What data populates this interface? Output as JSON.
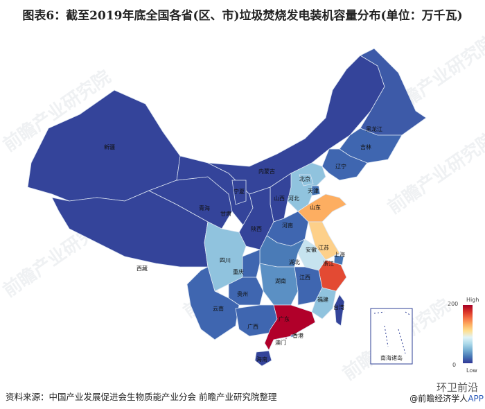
{
  "title": "图表6：截至2019年底全国各省(区、市)垃圾焚烧发电装机容量分布(单位：万千瓦)",
  "source": "资料来源：中国产业发展促进会生物质能产业分会 前瞻产业研究院整理",
  "brand": {
    "wechat": "环卫前沿",
    "app_prefix": "@前瞻经济学人",
    "app_suffix": "APP"
  },
  "watermark": "前瞻产业研究院",
  "legend": {
    "max": "200",
    "min": "0",
    "high_label": "High",
    "low_label": "Low",
    "colors": [
      "#a50026",
      "#d73027",
      "#f46d43",
      "#fdae61",
      "#fee090",
      "#e0f3f8",
      "#abd9e9",
      "#74add1",
      "#4575b4",
      "#313695"
    ]
  },
  "inset_label": "南海诸岛",
  "provinces": [
    {
      "name": "新疆",
      "color": "#34449a"
    },
    {
      "name": "西藏",
      "color": "#34449a"
    },
    {
      "name": "青海",
      "color": "#34449a"
    },
    {
      "name": "甘肃",
      "color": "#34449a"
    },
    {
      "name": "内蒙古",
      "color": "#34449a"
    },
    {
      "name": "黑龙江",
      "color": "#3d5aa8"
    },
    {
      "name": "吉林",
      "color": "#3f66b0"
    },
    {
      "name": "辽宁",
      "color": "#3f66b0"
    },
    {
      "name": "河北",
      "color": "#90c3de"
    },
    {
      "name": "北京",
      "color": "#90c3de"
    },
    {
      "name": "天津",
      "color": "#4575b4"
    },
    {
      "name": "山西",
      "color": "#34449a"
    },
    {
      "name": "陕西",
      "color": "#34449a"
    },
    {
      "name": "宁夏",
      "color": "#34449a"
    },
    {
      "name": "山东",
      "color": "#fdae61"
    },
    {
      "name": "河南",
      "color": "#3f66b0"
    },
    {
      "name": "江苏",
      "color": "#fdd08a"
    },
    {
      "name": "安徽",
      "color": "#c6e3ef"
    },
    {
      "name": "上海",
      "color": "#4575b4"
    },
    {
      "name": "浙江",
      "color": "#e34a33"
    },
    {
      "name": "湖北",
      "color": "#4a7bb7"
    },
    {
      "name": "重庆",
      "color": "#3f66b0"
    },
    {
      "name": "四川",
      "color": "#90c3de"
    },
    {
      "name": "湖南",
      "color": "#5b90c4"
    },
    {
      "name": "江西",
      "color": "#3f66b0"
    },
    {
      "name": "福建",
      "color": "#90c3de"
    },
    {
      "name": "贵州",
      "color": "#3f66b0"
    },
    {
      "name": "云南",
      "color": "#3f66b0"
    },
    {
      "name": "广西",
      "color": "#3f66b0"
    },
    {
      "name": "广东",
      "color": "#b1002a"
    },
    {
      "name": "海南",
      "color": "#34449a"
    },
    {
      "name": "台湾",
      "color": "#34449a"
    },
    {
      "name": "香港",
      "color": "#3f66b0"
    },
    {
      "name": "澳门",
      "color": "#b1002a"
    }
  ]
}
